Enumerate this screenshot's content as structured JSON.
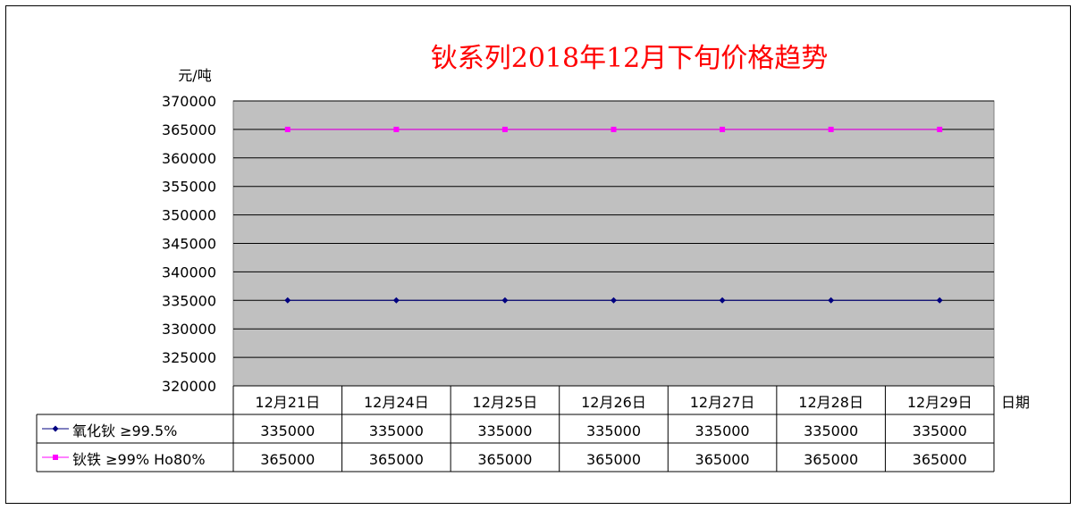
{
  "chart_data": {
    "type": "line",
    "title": "钬系列2018年12月下旬价格趋势",
    "ylabel": "元/吨",
    "xlabel": "日期",
    "ylim": [
      320000,
      370000
    ],
    "ytick_step": 5000,
    "grid": true,
    "plot_background": "#c0c0c0",
    "categories": [
      "12月21日",
      "12月24日",
      "12月25日",
      "12月26日",
      "12月27日",
      "12月28日",
      "12月29日"
    ],
    "series": [
      {
        "name": "氧化钬 ≥99.5%",
        "color": "#000080",
        "marker": "diamond",
        "values": [
          335000,
          335000,
          335000,
          335000,
          335000,
          335000,
          335000
        ]
      },
      {
        "name": "钬铁 ≥99% Ho80%",
        "color": "#ff00ff",
        "marker": "square",
        "values": [
          365000,
          365000,
          365000,
          365000,
          365000,
          365000,
          365000
        ]
      }
    ],
    "data_table": true
  }
}
